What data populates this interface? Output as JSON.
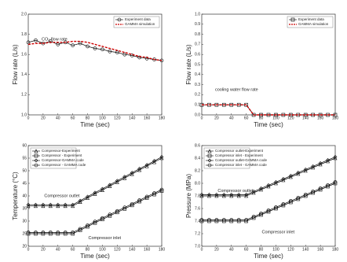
{
  "chart_data": [
    {
      "type": "line",
      "ylabel": "Flow rate (L/s)",
      "xlabel": "Time (sec)",
      "annotations": [
        "CO₂ flow rate"
      ],
      "legend": "upper right",
      "x": [
        0,
        10,
        20,
        30,
        40,
        50,
        60,
        70,
        80,
        90,
        100,
        110,
        120,
        130,
        140,
        150,
        160,
        170,
        180
      ],
      "xlim": [
        0,
        180
      ],
      "xticks": [
        0,
        20,
        40,
        60,
        80,
        100,
        120,
        140,
        160,
        180
      ],
      "ylim": [
        1.0,
        2.0
      ],
      "yticks": [
        {
          "value": 1.0,
          "label": "1.0"
        },
        1.2,
        1.4,
        1.6,
        1.8,
        {
          "value": 2.0,
          "label": "2.0"
        }
      ],
      "series": [
        {
          "name": "Experiment data",
          "color": "#000000",
          "marker": "circle",
          "dash": false,
          "values": [
            1.72,
            1.74,
            1.71,
            1.73,
            1.7,
            1.72,
            1.69,
            1.71,
            1.68,
            1.66,
            1.65,
            1.63,
            1.62,
            1.6,
            1.59,
            1.57,
            1.56,
            1.55,
            1.54
          ]
        },
        {
          "name": "GAMMA simulation",
          "color": "#cc0000",
          "marker": null,
          "dash": true,
          "values": [
            1.7,
            1.71,
            1.71,
            1.72,
            1.72,
            1.72,
            1.73,
            1.73,
            1.72,
            1.7,
            1.68,
            1.66,
            1.64,
            1.62,
            1.6,
            1.58,
            1.57,
            1.55,
            1.54
          ]
        }
      ]
    },
    {
      "type": "line",
      "ylabel": "Flow rate (L/s)",
      "xlabel": "Time (sec)",
      "annotations": [
        "cooling water flow rate"
      ],
      "legend": "upper right",
      "x": [
        0,
        10,
        20,
        30,
        40,
        50,
        60,
        70,
        80,
        90,
        100,
        110,
        120,
        130,
        140,
        150,
        160,
        170,
        180
      ],
      "xlim": [
        0,
        180
      ],
      "xticks": [
        0,
        20,
        40,
        60,
        80,
        100,
        120,
        140,
        160,
        180
      ],
      "ylim": [
        0.0,
        1.0
      ],
      "yticks": [
        {
          "value": 0.0,
          "label": "0.0"
        },
        0.1,
        0.2,
        0.3,
        0.4,
        0.5,
        0.6,
        0.7,
        0.8,
        0.9,
        {
          "value": 1.0,
          "label": "1.0"
        }
      ],
      "series": [
        {
          "name": "Experiment data",
          "color": "#000000",
          "marker": "square",
          "dash": false,
          "values": [
            0.1,
            0.1,
            0.1,
            0.1,
            0.1,
            0.1,
            0.1,
            0,
            0,
            0,
            0,
            0,
            0,
            0,
            0,
            0,
            0,
            0,
            0
          ]
        },
        {
          "name": "GAMMA simulation",
          "color": "#cc0000",
          "marker": null,
          "dash": true,
          "values": [
            0.1,
            0.1,
            0.1,
            0.1,
            0.1,
            0.1,
            0.1,
            0,
            0,
            0,
            0,
            0,
            0,
            0,
            0,
            0,
            0,
            0,
            0
          ]
        }
      ]
    },
    {
      "type": "line",
      "ylabel": "Temperature (°C)",
      "xlabel": "Time (sec)",
      "annotations": [
        "Compressor outlet",
        "Compressor inlet"
      ],
      "legend": "upper left",
      "x": [
        0,
        10,
        20,
        30,
        40,
        50,
        60,
        70,
        80,
        90,
        100,
        110,
        120,
        130,
        140,
        150,
        160,
        170,
        180
      ],
      "xlim": [
        0,
        180
      ],
      "xticks": [
        0,
        20,
        40,
        60,
        80,
        100,
        120,
        140,
        160,
        180
      ],
      "ylim": [
        20,
        60
      ],
      "yticks": [
        20,
        25,
        30,
        35,
        40,
        45,
        50,
        55,
        60
      ],
      "series": [
        {
          "name": "Compressor-Experiment",
          "color": "#000000",
          "marker": "triangle",
          "dash": false,
          "values": [
            36,
            36,
            36,
            36,
            36,
            36,
            36,
            37.6,
            39.2,
            40.8,
            42.3,
            43.9,
            45.5,
            47.1,
            48.7,
            50.3,
            51.8,
            53.4,
            55
          ]
        },
        {
          "name": "Compressor - Experiment",
          "color": "#000000",
          "marker": "square",
          "dash": false,
          "values": [
            25,
            25,
            25,
            25,
            25,
            25,
            25,
            26.4,
            27.8,
            29.3,
            30.7,
            32.1,
            33.5,
            34.9,
            36.3,
            37.8,
            39.2,
            40.6,
            42
          ]
        },
        {
          "name": "Compressor-GAMMA code",
          "color": "#000000",
          "marker": "diamond",
          "dash": false,
          "values": [
            36.5,
            36.5,
            36.5,
            36.5,
            36.5,
            36.5,
            36.5,
            38.1,
            39.7,
            41.3,
            42.8,
            44.4,
            46,
            47.6,
            49.2,
            50.8,
            52.3,
            53.9,
            55.5
          ]
        },
        {
          "name": "Compressor - GAMMA code",
          "color": "#000000",
          "marker": "circle",
          "dash": false,
          "values": [
            25.5,
            25.5,
            25.5,
            25.5,
            25.5,
            25.5,
            25.5,
            26.9,
            28.3,
            29.8,
            31.2,
            32.6,
            34,
            35.4,
            36.8,
            38.3,
            39.7,
            41.1,
            42.5
          ]
        }
      ]
    },
    {
      "type": "line",
      "ylabel": "Pressure (MPa)",
      "xlabel": "Time (sec)",
      "annotations": [
        "Compressor outlet",
        "Compressor inlet"
      ],
      "legend": "upper left",
      "x": [
        0,
        10,
        20,
        30,
        40,
        50,
        60,
        70,
        80,
        90,
        100,
        110,
        120,
        130,
        140,
        150,
        160,
        170,
        180
      ],
      "xlim": [
        0,
        180
      ],
      "xticks": [
        0,
        20,
        40,
        60,
        80,
        100,
        120,
        140,
        160,
        180
      ],
      "ylim": [
        7.0,
        8.6
      ],
      "yticks": [
        {
          "value": 7.0,
          "label": "7.0"
        },
        7.2,
        7.4,
        7.6,
        7.8,
        {
          "value": 8.0,
          "label": "8.0"
        },
        8.2,
        8.4,
        8.6
      ],
      "series": [
        {
          "name": "Compressor outlet-Experiment",
          "color": "#000000",
          "marker": "triangle",
          "dash": false,
          "values": [
            7.8,
            7.8,
            7.8,
            7.8,
            7.8,
            7.8,
            7.8,
            7.85,
            7.9,
            7.95,
            8.0,
            8.05,
            8.1,
            8.15,
            8.2,
            8.25,
            8.3,
            8.35,
            8.4
          ]
        },
        {
          "name": "Compressor inlet - Experiment",
          "color": "#000000",
          "marker": "square",
          "dash": false,
          "values": [
            7.4,
            7.4,
            7.4,
            7.4,
            7.4,
            7.4,
            7.4,
            7.45,
            7.5,
            7.55,
            7.6,
            7.65,
            7.7,
            7.75,
            7.8,
            7.85,
            7.9,
            7.95,
            8.0
          ]
        },
        {
          "name": "Compressor outlet-GAMMA code",
          "color": "#000000",
          "marker": "diamond",
          "dash": false,
          "values": [
            7.82,
            7.82,
            7.82,
            7.82,
            7.82,
            7.82,
            7.82,
            7.87,
            7.92,
            7.97,
            8.02,
            8.07,
            8.12,
            8.17,
            8.22,
            8.27,
            8.32,
            8.37,
            8.42
          ]
        },
        {
          "name": "Compressor inlet - GAMMA code",
          "color": "#000000",
          "marker": "circle",
          "dash": false,
          "values": [
            7.42,
            7.42,
            7.42,
            7.42,
            7.42,
            7.42,
            7.42,
            7.47,
            7.52,
            7.57,
            7.62,
            7.67,
            7.72,
            7.77,
            7.82,
            7.87,
            7.92,
            7.97,
            8.02
          ]
        }
      ]
    }
  ]
}
